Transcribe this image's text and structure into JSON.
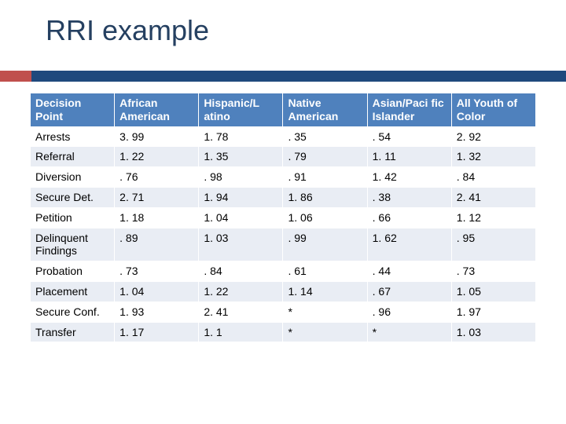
{
  "title": "RRI example",
  "accent": {
    "red": "#c0504d",
    "blue": "#1f497d"
  },
  "table": {
    "header_bg": "#4f81bd",
    "header_color": "#ffffff",
    "row_alt_bg": "#e9edf4",
    "font_size_pt": 14,
    "columns": [
      "Decision Point",
      "African American",
      "Hispanic/L atino",
      "Native American",
      "Asian/Paci fic Islander",
      "All Youth of Color"
    ],
    "rows": [
      [
        "Arrests",
        "3. 99",
        "1. 78",
        ". 35",
        ". 54",
        "2. 92"
      ],
      [
        "Referral",
        "1. 22",
        "1. 35",
        ". 79",
        "1. 11",
        "1. 32"
      ],
      [
        "Diversion",
        ". 76",
        ". 98",
        ". 91",
        "1. 42",
        ". 84"
      ],
      [
        "Secure Det.",
        "2. 71",
        "1. 94",
        "1. 86",
        ". 38",
        "2. 41"
      ],
      [
        "Petition",
        "1. 18",
        "1. 04",
        "1. 06",
        ". 66",
        "1. 12"
      ],
      [
        "Delinquent Findings",
        ". 89",
        "1. 03",
        ". 99",
        "1. 62",
        ". 95"
      ],
      [
        "Probation",
        ". 73",
        ". 84",
        ". 61",
        ". 44",
        ". 73"
      ],
      [
        "Placement",
        "1. 04",
        "1. 22",
        "1. 14",
        ". 67",
        "1. 05"
      ],
      [
        "Secure Conf.",
        "1. 93",
        "2. 41",
        "*",
        ". 96",
        "1. 97"
      ],
      [
        "Transfer",
        "1. 17",
        "1. 1",
        "*",
        "*",
        "1. 03"
      ]
    ]
  }
}
